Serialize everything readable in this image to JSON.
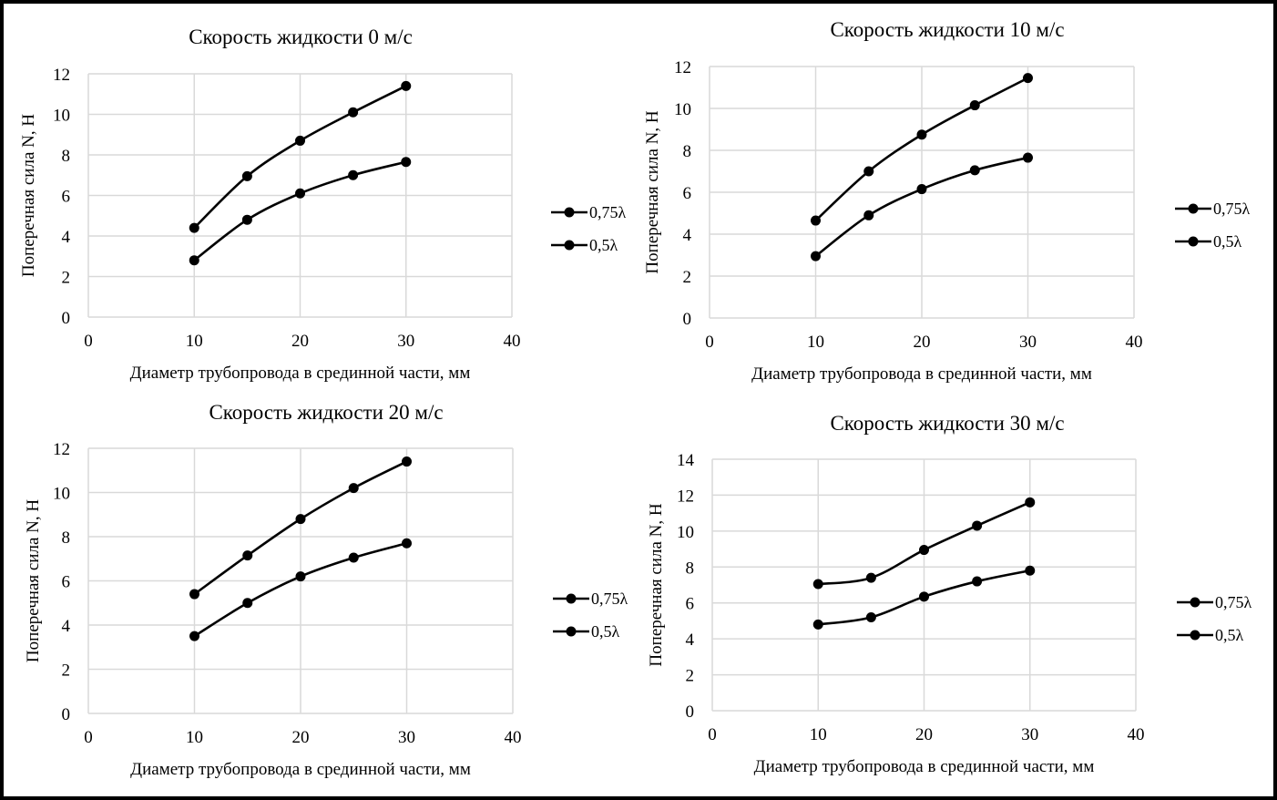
{
  "chart_data": [
    {
      "type": "line",
      "title": "Скорость жидкости 0 м/с",
      "xlabel": "Диаметр трубопровода в срединной части, мм",
      "ylabel": "Поперечная сила N, Н",
      "xlim": [
        0,
        40
      ],
      "ylim": [
        0,
        12
      ],
      "xticks": [
        0,
        10,
        20,
        30,
        40
      ],
      "yticks": [
        0,
        2,
        4,
        6,
        8,
        10,
        12
      ],
      "grid": true,
      "legend": "right",
      "smooth": true,
      "x": [
        10,
        15,
        20,
        25,
        30
      ],
      "series": [
        {
          "name": "0,75λ",
          "values": [
            4.4,
            6.95,
            8.7,
            10.1,
            11.4
          ]
        },
        {
          "name": "0,5λ",
          "values": [
            2.8,
            4.8,
            6.1,
            7.0,
            7.65
          ]
        }
      ]
    },
    {
      "type": "line",
      "title": "Скорость жидкости 10 м/с",
      "xlabel": "Диаметр трубопровода в срединной части, мм",
      "ylabel": "Поперечная сила N, Н",
      "xlim": [
        0,
        40
      ],
      "ylim": [
        0,
        12
      ],
      "xticks": [
        0,
        10,
        20,
        30,
        40
      ],
      "yticks": [
        0,
        2,
        4,
        6,
        8,
        10,
        12
      ],
      "grid": true,
      "legend": "right",
      "smooth": true,
      "x": [
        10,
        15,
        20,
        25,
        30
      ],
      "series": [
        {
          "name": "0,75λ",
          "values": [
            4.65,
            7.0,
            8.75,
            10.15,
            11.45
          ]
        },
        {
          "name": "0,5λ",
          "values": [
            2.95,
            4.9,
            6.15,
            7.05,
            7.65
          ]
        }
      ]
    },
    {
      "type": "line",
      "title": "Скорость жидкости 20 м/с",
      "xlabel": "Диаметр трубопровода в срединной части, мм",
      "ylabel": "Поперечная сила N, Н",
      "xlim": [
        0,
        40
      ],
      "ylim": [
        0,
        12
      ],
      "xticks": [
        0,
        10,
        20,
        30,
        40
      ],
      "yticks": [
        0,
        2,
        4,
        6,
        8,
        10,
        12
      ],
      "grid": true,
      "legend": "right",
      "smooth": true,
      "x": [
        10,
        15,
        20,
        25,
        30
      ],
      "series": [
        {
          "name": "0,75λ",
          "values": [
            5.4,
            7.15,
            8.8,
            10.2,
            11.4
          ]
        },
        {
          "name": "0,5λ",
          "values": [
            3.5,
            5.0,
            6.2,
            7.05,
            7.7
          ]
        }
      ]
    },
    {
      "type": "line",
      "title": "Скорость жидкости 30 м/с",
      "xlabel": "Диаметр трубопровода в срединной части, мм",
      "ylabel": "Поперечная сила N, Н",
      "xlim": [
        0,
        40
      ],
      "ylim": [
        0,
        14
      ],
      "xticks": [
        0,
        10,
        20,
        30,
        40
      ],
      "yticks": [
        0,
        2,
        4,
        6,
        8,
        10,
        12,
        14
      ],
      "grid": true,
      "legend": "right",
      "smooth": true,
      "x": [
        10,
        15,
        20,
        25,
        30
      ],
      "series": [
        {
          "name": "0,75λ",
          "values": [
            7.05,
            7.4,
            8.95,
            10.3,
            11.6
          ]
        },
        {
          "name": "0,5λ",
          "values": [
            4.8,
            5.2,
            6.35,
            7.2,
            7.8
          ]
        }
      ]
    }
  ],
  "colors": {
    "line": "#000000",
    "grid": "#d9d9d9",
    "border": "#000000"
  }
}
